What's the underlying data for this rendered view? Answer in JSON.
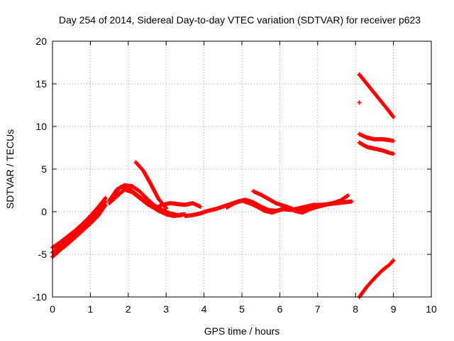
{
  "chart_data": {
    "type": "scatter",
    "title": "Day 254 of 2014, Sidereal Day-to-day VTEC variation (SDTVAR) for receiver p623",
    "xlabel": "GPS time / hours",
    "ylabel": "SDTVAR / TECUs",
    "xlim": [
      0,
      10
    ],
    "ylim": [
      -10,
      20
    ],
    "xticks": [
      "0",
      "1",
      "2",
      "3",
      "4",
      "5",
      "6",
      "7",
      "8",
      "9",
      "10"
    ],
    "yticks": [
      "-10",
      "-5",
      "0",
      "5",
      "10",
      "15",
      "20"
    ],
    "grid": true,
    "marker": "plus",
    "color": "#ff0000",
    "series": [
      {
        "values": [
          [
            0.0,
            -4.8
          ],
          [
            0.2,
            -4.0
          ],
          [
            0.4,
            -3.3
          ],
          [
            0.6,
            -2.6
          ],
          [
            0.8,
            -1.8
          ],
          [
            1.0,
            -1.0
          ],
          [
            1.2,
            0.0
          ],
          [
            1.4,
            1.2
          ]
        ]
      },
      {
        "values": [
          [
            0.0,
            -4.2
          ],
          [
            0.2,
            -3.6
          ],
          [
            0.4,
            -2.9
          ],
          [
            0.6,
            -2.2
          ],
          [
            0.8,
            -1.4
          ],
          [
            1.0,
            -0.5
          ],
          [
            1.2,
            0.5
          ],
          [
            1.4,
            1.6
          ]
        ]
      },
      {
        "values": [
          [
            0.0,
            -5.3
          ],
          [
            0.2,
            -4.5
          ],
          [
            0.4,
            -3.8
          ],
          [
            0.6,
            -3.0
          ],
          [
            0.8,
            -2.2
          ],
          [
            1.0,
            -1.4
          ],
          [
            1.2,
            -0.5
          ],
          [
            1.4,
            0.8
          ]
        ]
      },
      {
        "values": [
          [
            1.5,
            1.3
          ],
          [
            1.7,
            2.6
          ],
          [
            1.9,
            3.1
          ],
          [
            2.1,
            3.0
          ],
          [
            2.3,
            2.4
          ],
          [
            2.5,
            1.5
          ],
          [
            2.7,
            0.7
          ],
          [
            2.9,
            0.2
          ],
          [
            3.1,
            -0.2
          ],
          [
            3.3,
            -0.4
          ],
          [
            3.5,
            -0.3
          ]
        ]
      },
      {
        "values": [
          [
            1.5,
            1.0
          ],
          [
            1.7,
            1.8
          ],
          [
            1.9,
            2.6
          ],
          [
            2.1,
            2.3
          ],
          [
            2.3,
            1.6
          ],
          [
            2.5,
            0.9
          ],
          [
            2.7,
            0.4
          ],
          [
            2.9,
            0.8
          ],
          [
            3.1,
            1.0
          ],
          [
            3.3,
            0.9
          ],
          [
            3.5,
            0.8
          ],
          [
            3.7,
            1.0
          ],
          [
            3.9,
            0.6
          ]
        ]
      },
      {
        "values": [
          [
            1.6,
            1.8
          ],
          [
            1.8,
            2.9
          ],
          [
            2.0,
            2.8
          ],
          [
            2.2,
            2.1
          ],
          [
            2.4,
            1.4
          ],
          [
            2.6,
            0.7
          ],
          [
            2.8,
            0.1
          ],
          [
            3.0,
            -0.3
          ],
          [
            3.2,
            -0.5
          ],
          [
            3.4,
            -0.4
          ]
        ]
      },
      {
        "values": [
          [
            2.2,
            5.8
          ],
          [
            2.4,
            4.8
          ],
          [
            2.6,
            3.2
          ],
          [
            2.8,
            1.5
          ],
          [
            3.0,
            0.4
          ]
        ]
      },
      {
        "values": [
          [
            3.5,
            -0.5
          ],
          [
            3.7,
            -0.4
          ],
          [
            3.9,
            -0.2
          ],
          [
            4.1,
            0.1
          ],
          [
            4.3,
            0.3
          ],
          [
            4.5,
            0.6
          ],
          [
            4.7,
            0.9
          ],
          [
            4.9,
            1.2
          ],
          [
            5.1,
            1.4
          ],
          [
            5.3,
            1.1
          ],
          [
            5.5,
            0.6
          ],
          [
            5.7,
            0.2
          ],
          [
            5.9,
            0.1
          ],
          [
            6.1,
            0.3
          ],
          [
            6.3,
            0.2
          ],
          [
            6.5,
            0.4
          ],
          [
            6.7,
            0.6
          ],
          [
            6.9,
            0.8
          ],
          [
            7.1,
            0.8
          ],
          [
            7.3,
            0.9
          ],
          [
            7.5,
            1.0
          ],
          [
            7.7,
            1.1
          ],
          [
            7.9,
            1.2
          ]
        ]
      },
      {
        "values": [
          [
            4.6,
            0.5
          ],
          [
            4.8,
            1.0
          ],
          [
            5.0,
            1.3
          ],
          [
            5.2,
            1.0
          ],
          [
            5.4,
            0.6
          ],
          [
            5.6,
            0.1
          ],
          [
            5.8,
            -0.1
          ],
          [
            6.0,
            0.2
          ],
          [
            6.2,
            0.5
          ],
          [
            6.4,
            0.1
          ],
          [
            6.6,
            -0.1
          ],
          [
            6.8,
            0.3
          ],
          [
            7.0,
            0.6
          ],
          [
            7.2,
            0.8
          ],
          [
            7.4,
            1.0
          ],
          [
            7.6,
            1.3
          ],
          [
            7.8,
            1.9
          ]
        ]
      },
      {
        "values": [
          [
            5.3,
            2.4
          ],
          [
            5.5,
            2.0
          ],
          [
            5.7,
            1.5
          ],
          [
            5.9,
            1.0
          ],
          [
            6.1,
            0.7
          ],
          [
            6.3,
            0.4
          ],
          [
            6.5,
            0.0
          ],
          [
            6.7,
            0.3
          ],
          [
            6.9,
            0.5
          ],
          [
            7.1,
            0.7
          ]
        ]
      },
      {
        "values": [
          [
            8.1,
            16.1
          ],
          [
            8.3,
            15.0
          ],
          [
            8.5,
            13.9
          ],
          [
            8.7,
            12.8
          ],
          [
            8.9,
            11.7
          ],
          [
            9.0,
            11.1
          ]
        ]
      },
      {
        "values": [
          [
            8.1,
            12.8
          ]
        ]
      },
      {
        "values": [
          [
            8.1,
            9.1
          ],
          [
            8.3,
            8.7
          ],
          [
            8.5,
            8.5
          ],
          [
            8.7,
            8.5
          ],
          [
            8.9,
            8.4
          ],
          [
            9.0,
            8.3
          ]
        ]
      },
      {
        "values": [
          [
            8.1,
            8.1
          ],
          [
            8.3,
            7.6
          ],
          [
            8.5,
            7.4
          ],
          [
            8.7,
            7.2
          ],
          [
            8.9,
            6.9
          ],
          [
            9.0,
            6.8
          ]
        ]
      },
      {
        "values": [
          [
            8.1,
            -10.0
          ],
          [
            8.3,
            -8.8
          ],
          [
            8.5,
            -7.8
          ],
          [
            8.7,
            -6.9
          ],
          [
            8.9,
            -6.2
          ],
          [
            9.0,
            -5.7
          ]
        ]
      }
    ]
  }
}
